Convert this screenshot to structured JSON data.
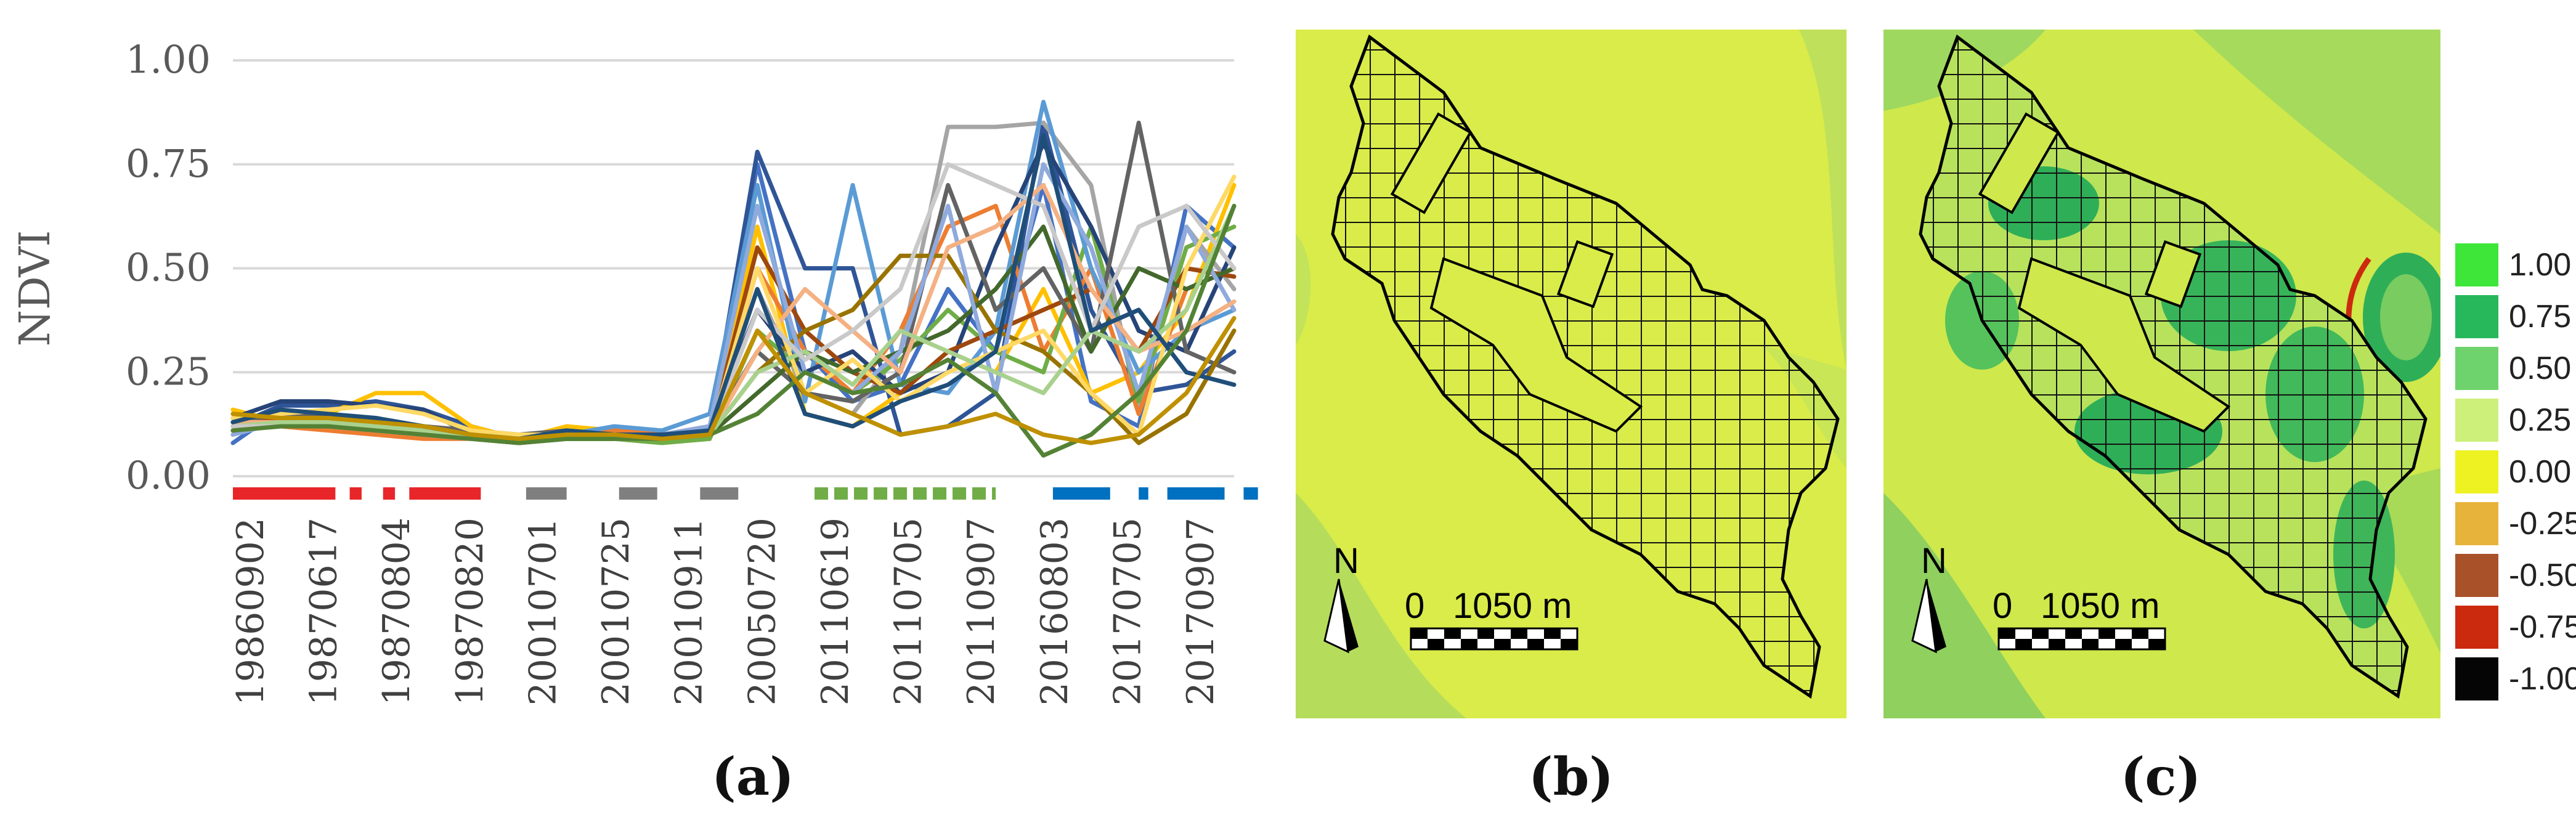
{
  "chart_data": [
    {
      "type": "line",
      "panel_label": "(a)",
      "ylabel": "NDVI",
      "ylim": [
        0,
        1
      ],
      "y_ticks": [
        "0.00",
        "0.25",
        "0.50",
        "0.75",
        "1.00"
      ],
      "grid": true,
      "x_tick_labels": [
        "19860902",
        "19870617",
        "19870804",
        "19870820",
        "20010701",
        "20010725",
        "20010911",
        "20050720",
        "20110619",
        "20110705",
        "20110907",
        "20160803",
        "20170705",
        "20170907"
      ],
      "period_bars": [
        {
          "group": "1986-1987",
          "color": "#e8262a",
          "segments": [
            [
              0,
              2.15
            ],
            [
              2.45,
              2.7
            ],
            [
              3.15,
              3.4
            ],
            [
              3.7,
              5.2
            ]
          ]
        },
        {
          "group": "2001",
          "color": "#7f7f7f",
          "segments": [
            [
              6.15,
              7.0
            ],
            [
              8.1,
              8.9
            ],
            [
              9.8,
              10.6
            ]
          ]
        },
        {
          "group": "2011",
          "color": "#70ad47",
          "dashed": true,
          "segments": [
            [
              12.2,
              16.0
            ]
          ]
        },
        {
          "group": "2016-2017",
          "color": "#0070c0",
          "segments": [
            [
              17.2,
              18.4
            ],
            [
              19.0,
              19.2
            ],
            [
              19.6,
              20.8
            ],
            [
              21.2,
              21.5
            ]
          ]
        }
      ],
      "series": [
        {
          "color": "#4472c4",
          "values": [
            0.08,
            0.16,
            0.14,
            0.13,
            0.12,
            0.1,
            0.08,
            0.12,
            0.1,
            0.1,
            0.11,
            0.75,
            0.3,
            0.18,
            0.22,
            0.45,
            0.3,
            0.7,
            0.18,
            0.12,
            0.65,
            0.55
          ]
        },
        {
          "color": "#2f5597",
          "values": [
            0.12,
            0.17,
            0.17,
            0.18,
            0.16,
            0.12,
            0.09,
            0.11,
            0.1,
            0.09,
            0.11,
            0.78,
            0.5,
            0.5,
            0.1,
            0.12,
            0.2,
            0.85,
            0.4,
            0.2,
            0.22,
            0.3
          ]
        },
        {
          "color": "#ffc000",
          "values": [
            0.16,
            0.13,
            0.15,
            0.2,
            0.2,
            0.12,
            0.09,
            0.12,
            0.11,
            0.1,
            0.1,
            0.6,
            0.15,
            0.12,
            0.2,
            0.3,
            0.25,
            0.45,
            0.2,
            0.25,
            0.4,
            0.7
          ]
        },
        {
          "color": "#a5a5a5",
          "values": [
            0.13,
            0.12,
            0.13,
            0.12,
            0.11,
            0.1,
            0.09,
            0.1,
            0.1,
            0.09,
            0.1,
            0.45,
            0.2,
            0.15,
            0.3,
            0.84,
            0.84,
            0.85,
            0.7,
            0.15,
            0.6,
            0.45
          ]
        },
        {
          "color": "#ed7d31",
          "values": [
            0.12,
            0.12,
            0.11,
            0.1,
            0.09,
            0.09,
            0.08,
            0.1,
            0.11,
            0.1,
            0.09,
            0.5,
            0.3,
            0.2,
            0.35,
            0.6,
            0.65,
            0.3,
            0.5,
            0.15,
            0.45,
            0.5
          ]
        },
        {
          "color": "#70ad47",
          "values": [
            0.11,
            0.13,
            0.12,
            0.11,
            0.1,
            0.1,
            0.08,
            0.09,
            0.09,
            0.08,
            0.09,
            0.35,
            0.25,
            0.2,
            0.28,
            0.4,
            0.3,
            0.25,
            0.6,
            0.18,
            0.55,
            0.6
          ]
        },
        {
          "color": "#5b9bd5",
          "values": [
            0.1,
            0.14,
            0.13,
            0.12,
            0.11,
            0.09,
            0.09,
            0.1,
            0.12,
            0.11,
            0.15,
            0.7,
            0.18,
            0.7,
            0.22,
            0.2,
            0.35,
            0.9,
            0.5,
            0.25,
            0.35,
            0.4
          ]
        },
        {
          "color": "#264478",
          "values": [
            0.14,
            0.18,
            0.18,
            0.17,
            0.16,
            0.1,
            0.09,
            0.11,
            0.1,
            0.1,
            0.12,
            0.4,
            0.25,
            0.3,
            0.2,
            0.25,
            0.55,
            0.8,
            0.6,
            0.35,
            0.3,
            0.55
          ]
        },
        {
          "color": "#9e480e",
          "values": [
            0.12,
            0.14,
            0.13,
            0.12,
            0.11,
            0.1,
            0.08,
            0.1,
            0.09,
            0.09,
            0.1,
            0.55,
            0.35,
            0.25,
            0.2,
            0.3,
            0.35,
            0.4,
            0.45,
            0.3,
            0.5,
            0.48
          ]
        },
        {
          "color": "#636363",
          "values": [
            0.13,
            0.15,
            0.14,
            0.13,
            0.12,
            0.11,
            0.1,
            0.11,
            0.1,
            0.1,
            0.11,
            0.3,
            0.2,
            0.18,
            0.25,
            0.7,
            0.4,
            0.5,
            0.3,
            0.85,
            0.3,
            0.25
          ]
        },
        {
          "color": "#997300",
          "values": [
            0.15,
            0.14,
            0.14,
            0.13,
            0.12,
            0.1,
            0.09,
            0.1,
            0.1,
            0.09,
            0.1,
            0.25,
            0.35,
            0.4,
            0.53,
            0.53,
            0.35,
            0.3,
            0.2,
            0.08,
            0.15,
            0.35
          ]
        },
        {
          "color": "#43682b",
          "values": [
            0.11,
            0.12,
            0.12,
            0.11,
            0.1,
            0.09,
            0.08,
            0.09,
            0.09,
            0.09,
            0.1,
            0.2,
            0.3,
            0.25,
            0.3,
            0.35,
            0.45,
            0.6,
            0.3,
            0.5,
            0.45,
            0.5
          ]
        },
        {
          "color": "#8faadc",
          "values": [
            0.1,
            0.13,
            0.12,
            0.11,
            0.1,
            0.09,
            0.09,
            0.1,
            0.1,
            0.1,
            0.12,
            0.65,
            0.25,
            0.2,
            0.3,
            0.65,
            0.2,
            0.75,
            0.55,
            0.2,
            0.6,
            0.4
          ]
        },
        {
          "color": "#f4b183",
          "values": [
            0.13,
            0.13,
            0.12,
            0.12,
            0.11,
            0.1,
            0.09,
            0.1,
            0.09,
            0.1,
            0.1,
            0.3,
            0.45,
            0.35,
            0.25,
            0.55,
            0.6,
            0.7,
            0.45,
            0.3,
            0.35,
            0.42
          ]
        },
        {
          "color": "#ffd966",
          "values": [
            0.14,
            0.15,
            0.16,
            0.17,
            0.15,
            0.11,
            0.1,
            0.1,
            0.1,
            0.1,
            0.1,
            0.5,
            0.2,
            0.28,
            0.18,
            0.25,
            0.3,
            0.35,
            0.2,
            0.1,
            0.5,
            0.72
          ]
        },
        {
          "color": "#a9d18e",
          "values": [
            0.12,
            0.13,
            0.13,
            0.12,
            0.11,
            0.1,
            0.09,
            0.1,
            0.1,
            0.09,
            0.1,
            0.25,
            0.3,
            0.22,
            0.35,
            0.3,
            0.25,
            0.2,
            0.35,
            0.3,
            0.4,
            0.65
          ]
        },
        {
          "color": "#c9c9c9",
          "values": [
            0.12,
            0.12,
            0.12,
            0.11,
            0.1,
            0.09,
            0.09,
            0.1,
            0.09,
            0.09,
            0.1,
            0.4,
            0.28,
            0.35,
            0.45,
            0.75,
            0.7,
            0.65,
            0.35,
            0.6,
            0.65,
            0.5
          ]
        },
        {
          "color": "#1f4e79",
          "values": [
            0.13,
            0.16,
            0.15,
            0.14,
            0.12,
            0.1,
            0.09,
            0.11,
            0.1,
            0.1,
            0.11,
            0.45,
            0.15,
            0.12,
            0.18,
            0.22,
            0.3,
            0.82,
            0.35,
            0.4,
            0.25,
            0.22
          ]
        },
        {
          "color": "#548235",
          "values": [
            0.11,
            0.12,
            0.12,
            0.11,
            0.1,
            0.09,
            0.08,
            0.09,
            0.09,
            0.09,
            0.1,
            0.15,
            0.25,
            0.2,
            0.22,
            0.28,
            0.2,
            0.05,
            0.1,
            0.2,
            0.35,
            0.65
          ]
        },
        {
          "color": "#bf9000",
          "values": [
            0.15,
            0.14,
            0.14,
            0.13,
            0.12,
            0.1,
            0.09,
            0.1,
            0.1,
            0.09,
            0.1,
            0.35,
            0.2,
            0.15,
            0.1,
            0.12,
            0.15,
            0.1,
            0.08,
            0.1,
            0.2,
            0.38
          ]
        }
      ]
    },
    {
      "type": "map",
      "panel_label": "(b)",
      "north_label": "N",
      "scale_start": "0",
      "scale_end": "1050 m"
    },
    {
      "type": "map",
      "panel_label": "(c)",
      "north_label": "N",
      "scale_start": "0",
      "scale_end": "1050 m",
      "legend": [
        {
          "label": "1.00",
          "color": "#3ee63a"
        },
        {
          "label": "0.75",
          "color": "#27b85c"
        },
        {
          "label": "0.50",
          "color": "#6ed36c"
        },
        {
          "label": "0.25",
          "color": "#cdf07a"
        },
        {
          "label": "0.00",
          "color": "#eef223"
        },
        {
          "label": "-0.25",
          "color": "#e7b33a"
        },
        {
          "label": "-0.50",
          "color": "#a9522a"
        },
        {
          "label": "-0.75",
          "color": "#cc2a0e"
        },
        {
          "label": "-1.00",
          "color": "#050505"
        }
      ]
    }
  ]
}
